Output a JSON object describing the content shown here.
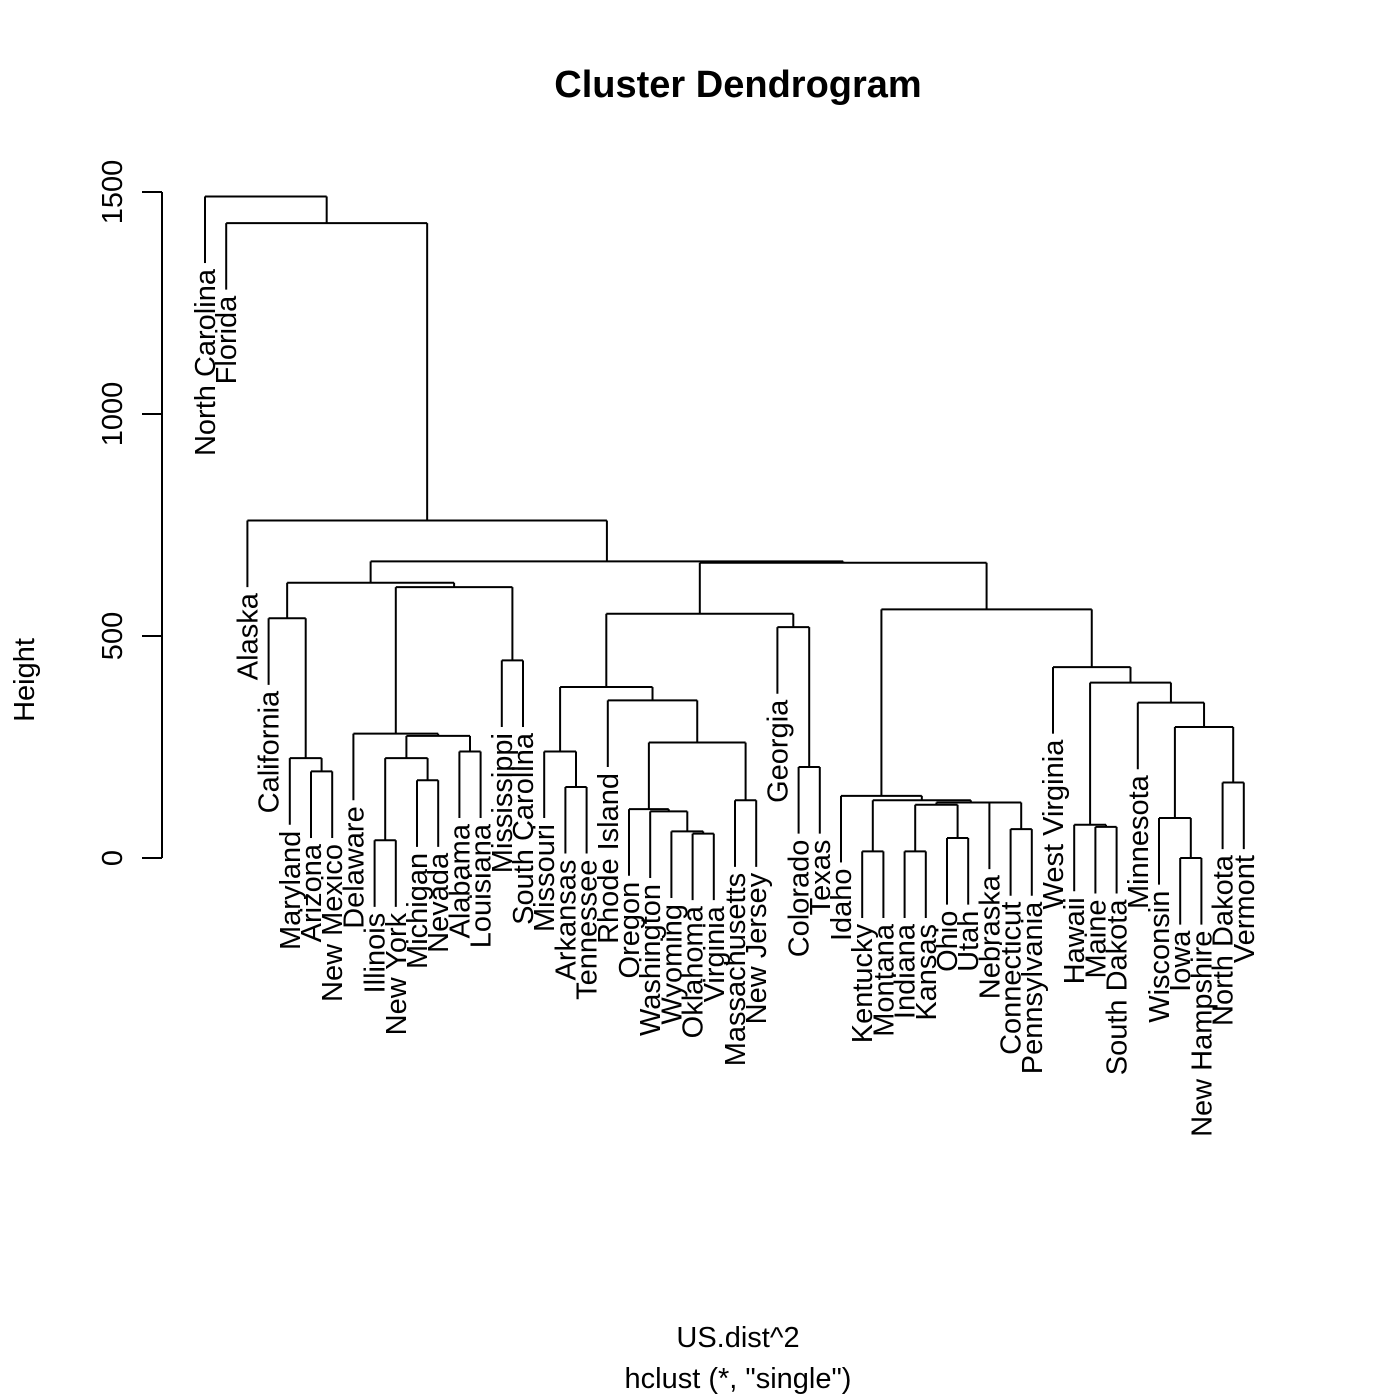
{
  "chart_data": {
    "type": "dendrogram",
    "title": "Cluster Dendrogram",
    "xlabel": "US.dist^2",
    "sublabel": "hclust (*, \"single\")",
    "ylabel": "Height",
    "ylim": [
      0,
      1500
    ],
    "yticks": [
      0,
      500,
      1000,
      1500
    ],
    "leaf_order": [
      "North Carolina",
      "Florida",
      "Alaska",
      "California",
      "Maryland",
      "Arizona",
      "New Mexico",
      "Delaware",
      "Illinois",
      "New York",
      "Michigan",
      "Nevada",
      "Alabama",
      "Louisiana",
      "Mississippi",
      "South Carolina",
      "Missouri",
      "Arkansas",
      "Tennessee",
      "Rhode Island",
      "Oregon",
      "Washington",
      "Wyoming",
      "Oklahoma",
      "Virginia",
      "Massachusetts",
      "New Jersey",
      "Georgia",
      "Colorado",
      "Texas",
      "Idaho",
      "Kentucky",
      "Montana",
      "Indiana",
      "Kansas",
      "Ohio",
      "Utah",
      "Nebraska",
      "Connecticut",
      "Pennsylvania",
      "West Virginia",
      "Hawaii",
      "Maine",
      "South Dakota",
      "Minnesota",
      "Wisconsin",
      "Iowa",
      "New Hampshire",
      "North Dakota",
      "Vermont"
    ],
    "tree": [
      "m",
      1490,
      [
        "l",
        "North Carolina"
      ],
      [
        "m",
        1430,
        [
          "l",
          "Florida"
        ],
        [
          "m",
          760,
          [
            "l",
            "Alaska"
          ],
          [
            "m",
            668,
            [
              "m",
              620,
              [
                "m",
                540,
                [
                  "l",
                  "California"
                ],
                [
                  "m",
                  225,
                  [
                    "l",
                    "Maryland"
                  ],
                  [
                    "m",
                    195,
                    [
                      "l",
                      "Arizona"
                    ],
                    [
                      "l",
                      "New Mexico"
                    ]
                  ]
                ]
              ],
              [
                "m",
                610,
                [
                  "m",
                  280,
                  [
                    "l",
                    "Delaware"
                  ],
                  [
                    "m",
                    275,
                    [
                      "m",
                      225,
                      [
                        "m",
                        40,
                        [
                          "l",
                          "Illinois"
                        ],
                        [
                          "l",
                          "New York"
                        ]
                      ],
                      [
                        "m",
                        175,
                        [
                          "l",
                          "Michigan"
                        ],
                        [
                          "l",
                          "Nevada"
                        ]
                      ]
                    ],
                    [
                      "m",
                      240,
                      [
                        "l",
                        "Alabama"
                      ],
                      [
                        "l",
                        "Louisiana"
                      ]
                    ]
                  ]
                ],
                [
                  "m",
                  445,
                  [
                    "l",
                    "Mississippi"
                  ],
                  [
                    "l",
                    "South Carolina"
                  ]
                ]
              ]
            ],
            [
              "m",
              665,
              [
                "m",
                550,
                [
                  "m",
                  385,
                  [
                    "m",
                    240,
                    [
                      "l",
                      "Missouri"
                    ],
                    [
                      "m",
                      160,
                      [
                        "l",
                        "Arkansas"
                      ],
                      [
                        "l",
                        "Tennessee"
                      ]
                    ]
                  ],
                  [
                    "m",
                    355,
                    [
                      "l",
                      "Rhode Island"
                    ],
                    [
                      "m",
                      260,
                      [
                        "m",
                        110,
                        [
                          "l",
                          "Oregon"
                        ],
                        [
                          "m",
                          105,
                          [
                            "l",
                            "Washington"
                          ],
                          [
                            "m",
                            60,
                            [
                              "l",
                              "Wyoming"
                            ],
                            [
                              "m",
                              55,
                              [
                                "l",
                                "Oklahoma"
                              ],
                              [
                                "l",
                                "Virginia"
                              ]
                            ]
                          ]
                        ]
                      ],
                      [
                        "m",
                        130,
                        [
                          "l",
                          "Massachusetts"
                        ],
                        [
                          "l",
                          "New Jersey"
                        ]
                      ]
                    ]
                  ]
                ],
                [
                  "m",
                  520,
                  [
                    "l",
                    "Georgia"
                  ],
                  [
                    "m",
                    205,
                    [
                      "l",
                      "Colorado"
                    ],
                    [
                      "l",
                      "Texas"
                    ]
                  ]
                ]
              ],
              [
                "m",
                560,
                [
                  "m",
                  140,
                  [
                    "l",
                    "Idaho"
                  ],
                  [
                    "m",
                    130,
                    [
                      "m",
                      15,
                      [
                        "l",
                        "Kentucky"
                      ],
                      [
                        "l",
                        "Montana"
                      ]
                    ],
                    [
                      "m",
                      125,
                      [
                        "m",
                        120,
                        [
                          "m",
                          15,
                          [
                            "l",
                            "Indiana"
                          ],
                          [
                            "l",
                            "Kansas"
                          ]
                        ],
                        [
                          "m",
                          45,
                          [
                            "l",
                            "Ohio"
                          ],
                          [
                            "l",
                            "Utah"
                          ]
                        ]
                      ],
                      [
                        "m",
                        125,
                        [
                          "l",
                          "Nebraska"
                        ],
                        [
                          "m",
                          65,
                          [
                            "l",
                            "Connecticut"
                          ],
                          [
                            "l",
                            "Pennsylvania"
                          ]
                        ]
                      ]
                    ]
                  ]
                ],
                [
                  "m",
                  430,
                  [
                    "l",
                    "West Virginia"
                  ],
                  [
                    "m",
                    395,
                    [
                      "m",
                      75,
                      [
                        "l",
                        "Hawaii"
                      ],
                      [
                        "m",
                        70,
                        [
                          "l",
                          "Maine"
                        ],
                        [
                          "l",
                          "South Dakota"
                        ]
                      ]
                    ],
                    [
                      "m",
                      350,
                      [
                        "l",
                        "Minnesota"
                      ],
                      [
                        "m",
                        295,
                        [
                          "m",
                          90,
                          [
                            "l",
                            "Wisconsin"
                          ],
                          [
                            "m",
                            0,
                            [
                              "l",
                              "Iowa"
                            ],
                            [
                              "l",
                              "New Hampshire"
                            ]
                          ]
                        ],
                        [
                          "m",
                          170,
                          [
                            "l",
                            "North Dakota"
                          ],
                          [
                            "l",
                            "Vermont"
                          ]
                        ]
                      ]
                    ]
                  ]
                ]
              ]
            ]
          ]
        ]
      ]
    ]
  }
}
